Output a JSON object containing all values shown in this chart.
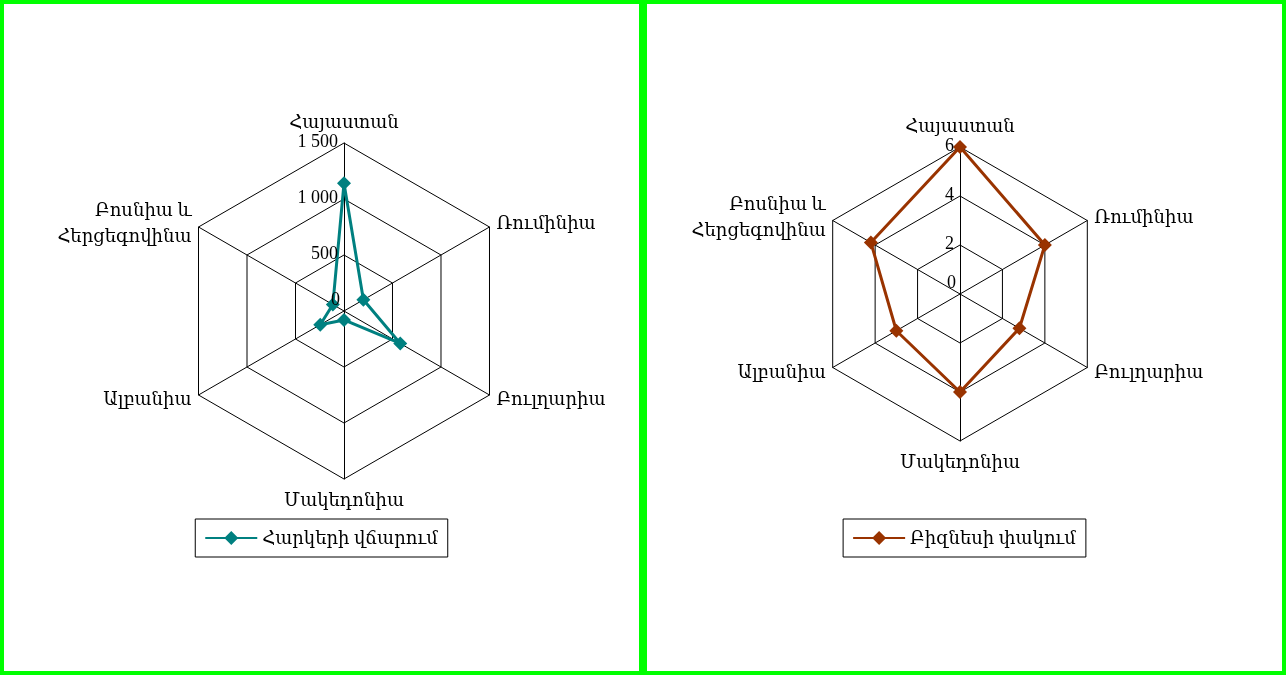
{
  "chart_data": [
    {
      "type": "radar",
      "categories": [
        "Հայաստան",
        "Ռումինիա",
        "Բուլղարիա",
        "Մակեդոնիա",
        "Ալբանիա",
        "Բոսնիա և Հերցեգովինա"
      ],
      "series": [
        {
          "name": "Հարկերի վճարում",
          "color": "#008080",
          "values": [
            1140,
            200,
            580,
            80,
            245,
            115
          ]
        }
      ],
      "ylim": [
        0,
        1500
      ],
      "yticks": [
        0,
        500,
        {
          "value": 1000,
          "label": "1 000"
        },
        {
          "value": 1500,
          "label": "1 500"
        }
      ],
      "legend": "bottom",
      "marker": "diamond",
      "grid": true
    },
    {
      "type": "radar",
      "categories": [
        "Հայաստան",
        "Ռումինիա",
        "Բուլղարիա",
        "Մակեդոնիա",
        "Ալբանիա",
        "Բոսնիա և Հերցեգովինա"
      ],
      "series": [
        {
          "name": "Բիզնեսի փակում",
          "color": "#993300",
          "values": [
            6,
            4,
            2.8,
            4,
            3,
            4.2
          ]
        }
      ],
      "ylim": [
        0,
        6
      ],
      "yticks": [
        0,
        2,
        4,
        6
      ],
      "legend": "bottom",
      "marker": "diamond",
      "grid": true
    }
  ]
}
